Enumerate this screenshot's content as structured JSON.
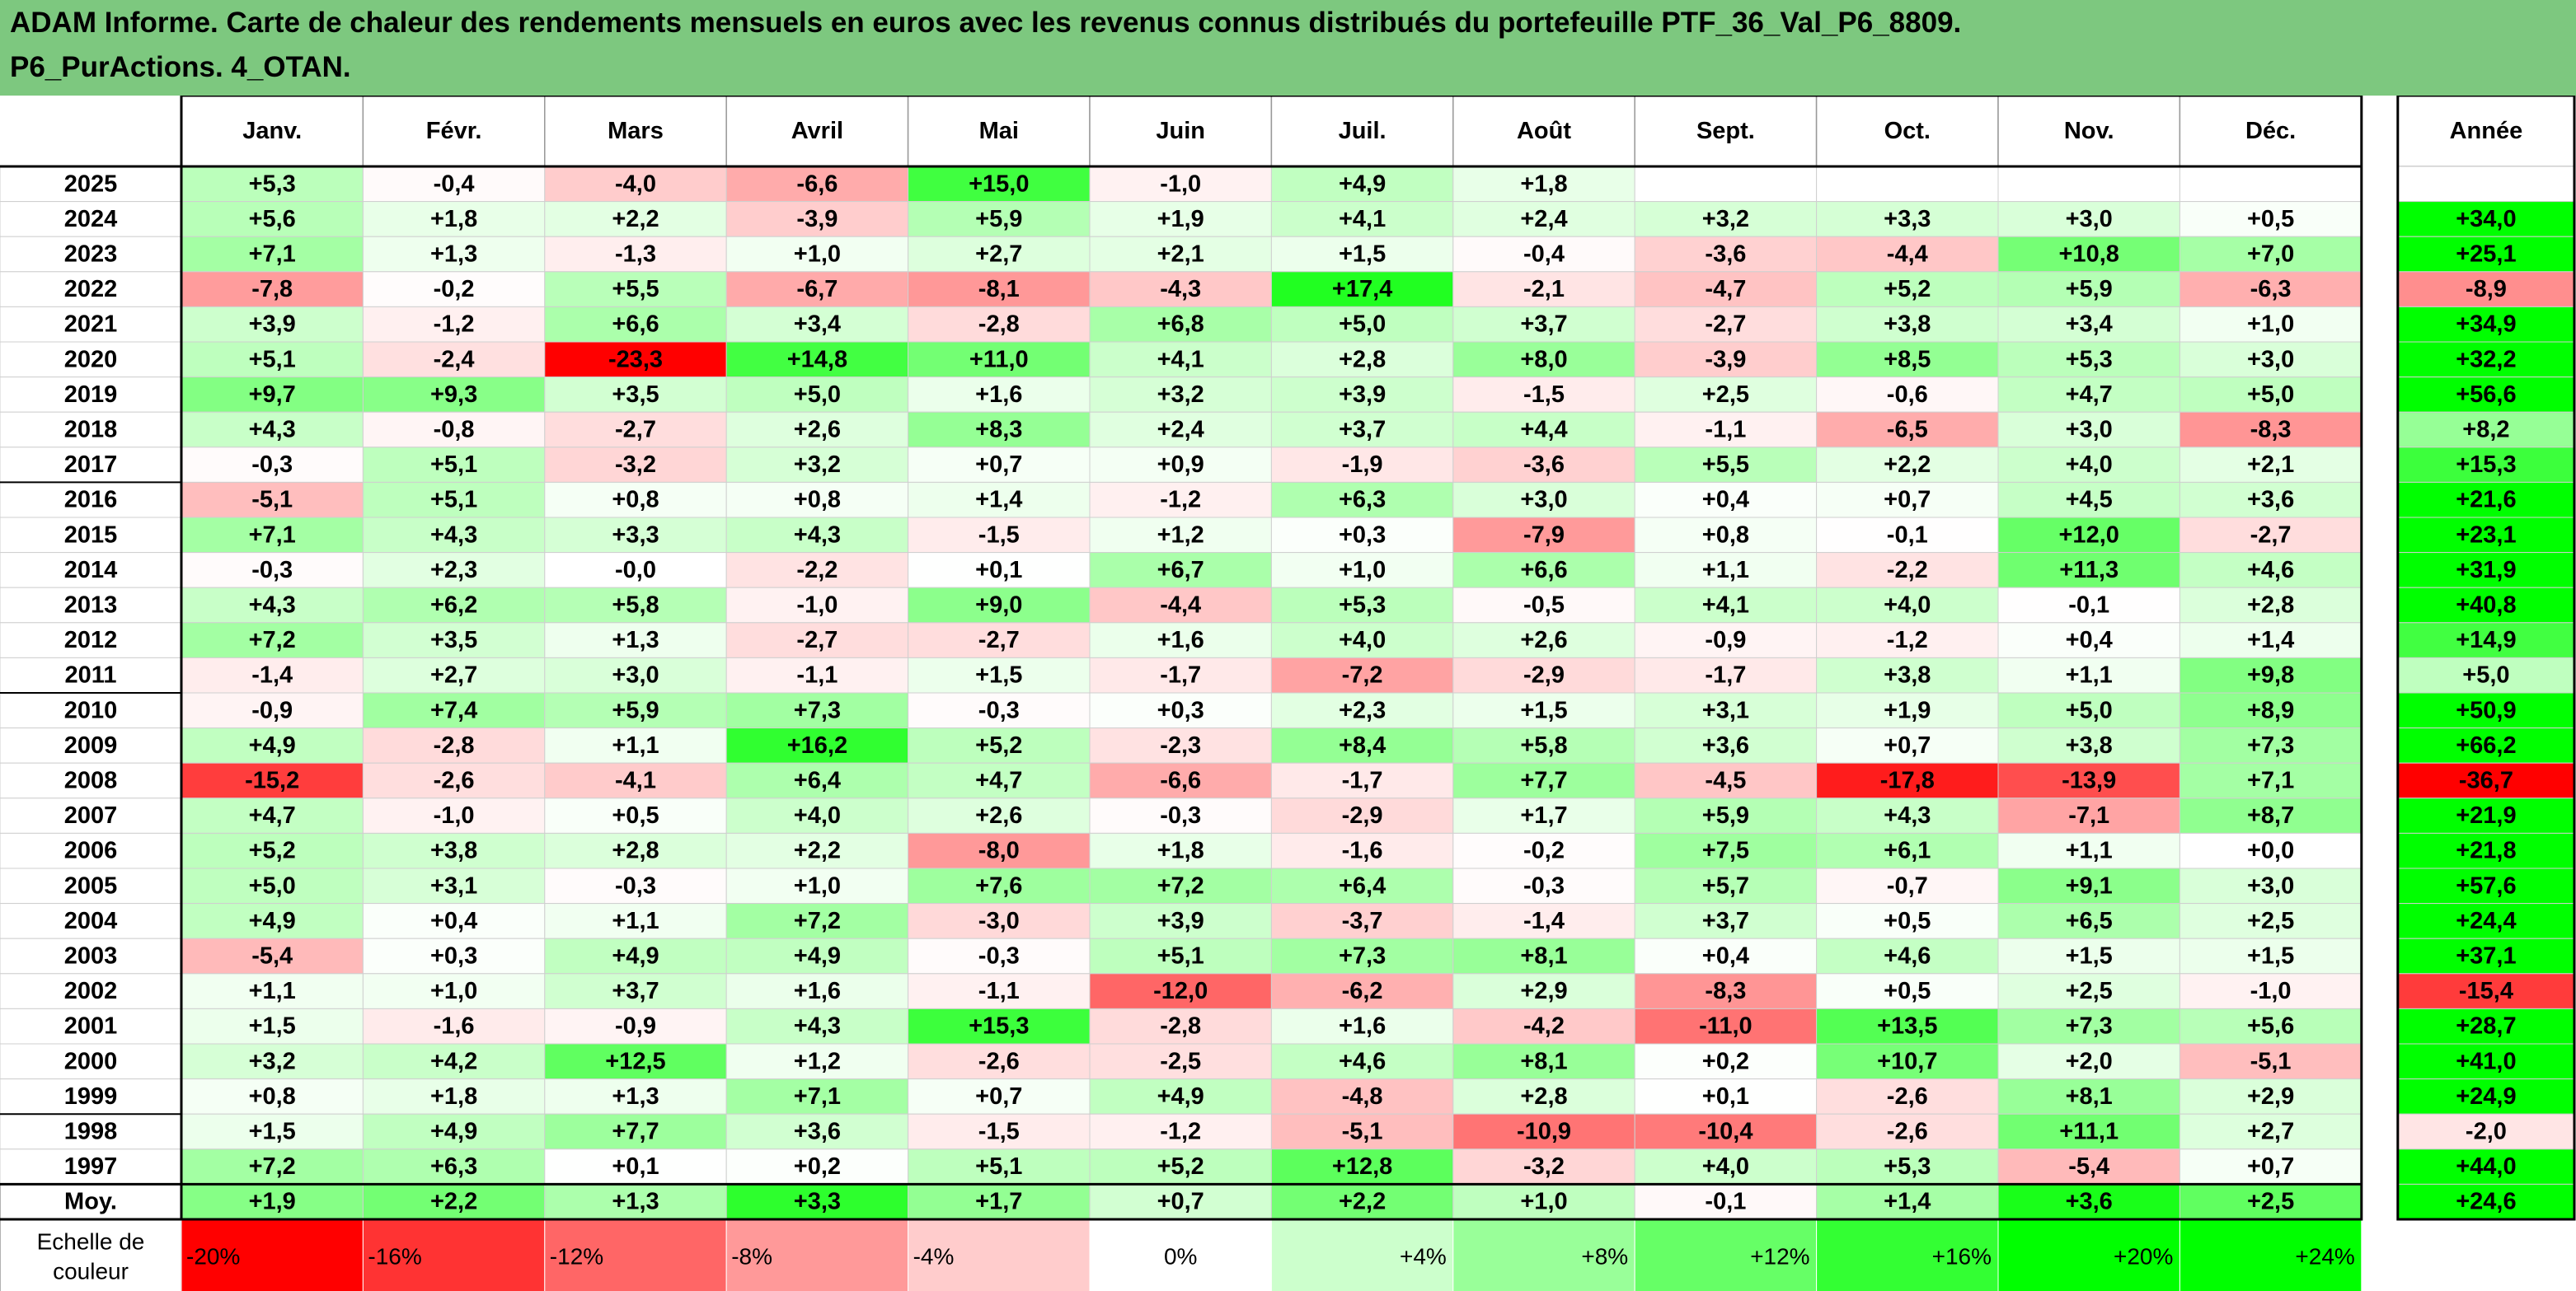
{
  "title": {
    "line1": "ADAM Informe. Carte de chaleur des rendements mensuels en euros avec les revenus connus distribués du portefeuille PTF_36_Val_P6_8809.",
    "line2": "P6_PurActions. 4_OTAN."
  },
  "chart_data": {
    "type": "heatmap",
    "title": "ADAM Informe. Carte de chaleur des rendements mensuels en euros avec les revenus connus distribués du portefeuille PTF_36_Val_P6_8809. P6_PurActions. 4_OTAN.",
    "months": [
      "Janv.",
      "Févr.",
      "Mars",
      "Avril",
      "Mai",
      "Juin",
      "Juil.",
      "Août",
      "Sept.",
      "Oct.",
      "Nov.",
      "Déc."
    ],
    "year_column_label": "Année",
    "rows": [
      {
        "year": "2025",
        "values": [
          "+5,3",
          "-0,4",
          "-4,0",
          "-6,6",
          "+15,0",
          "-1,0",
          "+4,9",
          "+1,8",
          "",
          "",
          "",
          ""
        ],
        "annual": ""
      },
      {
        "year": "2024",
        "values": [
          "+5,6",
          "+1,8",
          "+2,2",
          "-3,9",
          "+5,9",
          "+1,9",
          "+4,1",
          "+2,4",
          "+3,2",
          "+3,3",
          "+3,0",
          "+0,5"
        ],
        "annual": "+34,0"
      },
      {
        "year": "2023",
        "values": [
          "+7,1",
          "+1,3",
          "-1,3",
          "+1,0",
          "+2,7",
          "+2,1",
          "+1,5",
          "-0,4",
          "-3,6",
          "-4,4",
          "+10,8",
          "+7,0"
        ],
        "annual": "+25,1"
      },
      {
        "year": "2022",
        "values": [
          "-7,8",
          "-0,2",
          "+5,5",
          "-6,7",
          "-8,1",
          "-4,3",
          "+17,4",
          "-2,1",
          "-4,7",
          "+5,2",
          "+5,9",
          "-6,3"
        ],
        "annual": "-8,9"
      },
      {
        "year": "2021",
        "values": [
          "+3,9",
          "-1,2",
          "+6,6",
          "+3,4",
          "-2,8",
          "+6,8",
          "+5,0",
          "+3,7",
          "-2,7",
          "+3,8",
          "+3,4",
          "+1,0"
        ],
        "annual": "+34,9"
      },
      {
        "year": "2020",
        "values": [
          "+5,1",
          "-2,4",
          "-23,3",
          "+14,8",
          "+11,0",
          "+4,1",
          "+2,8",
          "+8,0",
          "-3,9",
          "+8,5",
          "+5,3",
          "+3,0"
        ],
        "annual": "+32,2"
      },
      {
        "year": "2019",
        "values": [
          "+9,7",
          "+9,3",
          "+3,5",
          "+5,0",
          "+1,6",
          "+3,2",
          "+3,9",
          "-1,5",
          "+2,5",
          "-0,6",
          "+4,7",
          "+5,0"
        ],
        "annual": "+56,6"
      },
      {
        "year": "2018",
        "values": [
          "+4,3",
          "-0,8",
          "-2,7",
          "+2,6",
          "+8,3",
          "+2,4",
          "+3,7",
          "+4,4",
          "-1,1",
          "-6,5",
          "+3,0",
          "-8,3"
        ],
        "annual": "+8,2"
      },
      {
        "year": "2017",
        "values": [
          "-0,3",
          "+5,1",
          "-3,2",
          "+3,2",
          "+0,7",
          "+0,9",
          "-1,9",
          "-3,6",
          "+5,5",
          "+2,2",
          "+4,0",
          "+2,1"
        ],
        "annual": "+15,3"
      },
      {
        "year": "2016",
        "values": [
          "-5,1",
          "+5,1",
          "+0,8",
          "+0,8",
          "+1,4",
          "-1,2",
          "+6,3",
          "+3,0",
          "+0,4",
          "+0,7",
          "+4,5",
          "+3,6"
        ],
        "annual": "+21,6"
      },
      {
        "year": "2015",
        "values": [
          "+7,1",
          "+4,3",
          "+3,3",
          "+4,3",
          "-1,5",
          "+1,2",
          "+0,3",
          "-7,9",
          "+0,8",
          "-0,1",
          "+12,0",
          "-2,7"
        ],
        "annual": "+23,1"
      },
      {
        "year": "2014",
        "values": [
          "-0,3",
          "+2,3",
          "-0,0",
          "-2,2",
          "+0,1",
          "+6,7",
          "+1,0",
          "+6,6",
          "+1,1",
          "-2,2",
          "+11,3",
          "+4,6"
        ],
        "annual": "+31,9"
      },
      {
        "year": "2013",
        "values": [
          "+4,3",
          "+6,2",
          "+5,8",
          "-1,0",
          "+9,0",
          "-4,4",
          "+5,3",
          "-0,5",
          "+4,1",
          "+4,0",
          "-0,1",
          "+2,8"
        ],
        "annual": "+40,8"
      },
      {
        "year": "2012",
        "values": [
          "+7,2",
          "+3,5",
          "+1,3",
          "-2,7",
          "-2,7",
          "+1,6",
          "+4,0",
          "+2,6",
          "-0,9",
          "-1,2",
          "+0,4",
          "+1,4"
        ],
        "annual": "+14,9"
      },
      {
        "year": "2011",
        "values": [
          "-1,4",
          "+2,7",
          "+3,0",
          "-1,1",
          "+1,5",
          "-1,7",
          "-7,2",
          "-2,9",
          "-1,7",
          "+3,8",
          "+1,1",
          "+9,8"
        ],
        "annual": "+5,0"
      },
      {
        "year": "2010",
        "values": [
          "-0,9",
          "+7,4",
          "+5,9",
          "+7,3",
          "-0,3",
          "+0,3",
          "+2,3",
          "+1,5",
          "+3,1",
          "+1,9",
          "+5,0",
          "+8,9"
        ],
        "annual": "+50,9"
      },
      {
        "year": "2009",
        "values": [
          "+4,9",
          "-2,8",
          "+1,1",
          "+16,2",
          "+5,2",
          "-2,3",
          "+8,4",
          "+5,8",
          "+3,6",
          "+0,7",
          "+3,8",
          "+7,3"
        ],
        "annual": "+66,2"
      },
      {
        "year": "2008",
        "values": [
          "-15,2",
          "-2,6",
          "-4,1",
          "+6,4",
          "+4,7",
          "-6,6",
          "-1,7",
          "+7,7",
          "-4,5",
          "-17,8",
          "-13,9",
          "+7,1"
        ],
        "annual": "-36,7"
      },
      {
        "year": "2007",
        "values": [
          "+4,7",
          "-1,0",
          "+0,5",
          "+4,0",
          "+2,6",
          "-0,3",
          "-2,9",
          "+1,7",
          "+5,9",
          "+4,3",
          "-7,1",
          "+8,7"
        ],
        "annual": "+21,9"
      },
      {
        "year": "2006",
        "values": [
          "+5,2",
          "+3,8",
          "+2,8",
          "+2,2",
          "-8,0",
          "+1,8",
          "-1,6",
          "-0,2",
          "+7,5",
          "+6,1",
          "+1,1",
          "+0,0"
        ],
        "annual": "+21,8"
      },
      {
        "year": "2005",
        "values": [
          "+5,0",
          "+3,1",
          "-0,3",
          "+1,0",
          "+7,6",
          "+7,2",
          "+6,4",
          "-0,3",
          "+5,7",
          "-0,7",
          "+9,1",
          "+3,0"
        ],
        "annual": "+57,6"
      },
      {
        "year": "2004",
        "values": [
          "+4,9",
          "+0,4",
          "+1,1",
          "+7,2",
          "-3,0",
          "+3,9",
          "-3,7",
          "-1,4",
          "+3,7",
          "+0,5",
          "+6,5",
          "+2,5"
        ],
        "annual": "+24,4"
      },
      {
        "year": "2003",
        "values": [
          "-5,4",
          "+0,3",
          "+4,9",
          "+4,9",
          "-0,3",
          "+5,1",
          "+7,3",
          "+8,1",
          "+0,4",
          "+4,6",
          "+1,5",
          "+1,5"
        ],
        "annual": "+37,1"
      },
      {
        "year": "2002",
        "values": [
          "+1,1",
          "+1,0",
          "+3,7",
          "+1,6",
          "-1,1",
          "-12,0",
          "-6,2",
          "+2,9",
          "-8,3",
          "+0,5",
          "+2,5",
          "-1,0"
        ],
        "annual": "-15,4"
      },
      {
        "year": "2001",
        "values": [
          "+1,5",
          "-1,6",
          "-0,9",
          "+4,3",
          "+15,3",
          "-2,8",
          "+1,6",
          "-4,2",
          "-11,0",
          "+13,5",
          "+7,3",
          "+5,6"
        ],
        "annual": "+28,7"
      },
      {
        "year": "2000",
        "values": [
          "+3,2",
          "+4,2",
          "+12,5",
          "+1,2",
          "-2,6",
          "-2,5",
          "+4,6",
          "+8,1",
          "+0,2",
          "+10,7",
          "+2,0",
          "-5,1"
        ],
        "annual": "+41,0"
      },
      {
        "year": "1999",
        "values": [
          "+0,8",
          "+1,8",
          "+1,3",
          "+7,1",
          "+0,7",
          "+4,9",
          "-4,8",
          "+2,8",
          "+0,1",
          "-2,6",
          "+8,1",
          "+2,9"
        ],
        "annual": "+24,9"
      },
      {
        "year": "1998",
        "values": [
          "+1,5",
          "+4,9",
          "+7,7",
          "+3,6",
          "-1,5",
          "-1,2",
          "-5,1",
          "-10,9",
          "-10,4",
          "-2,6",
          "+11,1",
          "+2,7"
        ],
        "annual": "-2,0"
      },
      {
        "year": "1997",
        "values": [
          "+7,2",
          "+6,3",
          "+0,1",
          "+0,2",
          "+5,1",
          "+5,2",
          "+12,8",
          "-3,2",
          "+4,0",
          "+5,3",
          "-5,4",
          "+0,7"
        ],
        "annual": "+44,0"
      }
    ],
    "average_row": {
      "label": "Moy.",
      "values": [
        "+1,9",
        "+2,2",
        "+1,3",
        "+3,3",
        "+1,7",
        "+0,7",
        "+2,2",
        "+1,0",
        "-0,1",
        "+1,4",
        "+3,6",
        "+2,5"
      ],
      "annual": "+24,6"
    },
    "color_scale": {
      "label": "Echelle de couleur",
      "steps": [
        {
          "label": "-20%",
          "value": -20,
          "color": "#FF0000"
        },
        {
          "label": "-16%",
          "value": -16,
          "color": "#FF3333"
        },
        {
          "label": "-12%",
          "value": -12,
          "color": "#FF6666"
        },
        {
          "label": "-8%",
          "value": -8,
          "color": "#FF9999"
        },
        {
          "label": "-4%",
          "value": -4,
          "color": "#FFCCCC"
        },
        {
          "label": "0%",
          "value": 0,
          "color": "#FFFFFF"
        },
        {
          "label": "+4%",
          "value": 4,
          "color": "#CCFFCC"
        },
        {
          "label": "+8%",
          "value": 8,
          "color": "#99FF99"
        },
        {
          "label": "+12%",
          "value": 12,
          "color": "#66FF66"
        },
        {
          "label": "+16%",
          "value": 16,
          "color": "#33FF33"
        },
        {
          "label": "+20%",
          "value": 20,
          "color": "#00FF00"
        },
        {
          "label": "+24%",
          "value": 24,
          "color": "#00FF00"
        }
      ]
    },
    "colors": {
      "header_band": "#7DC87F",
      "negative_max": "#FF0000",
      "positive_max": "#00FF00"
    }
  }
}
